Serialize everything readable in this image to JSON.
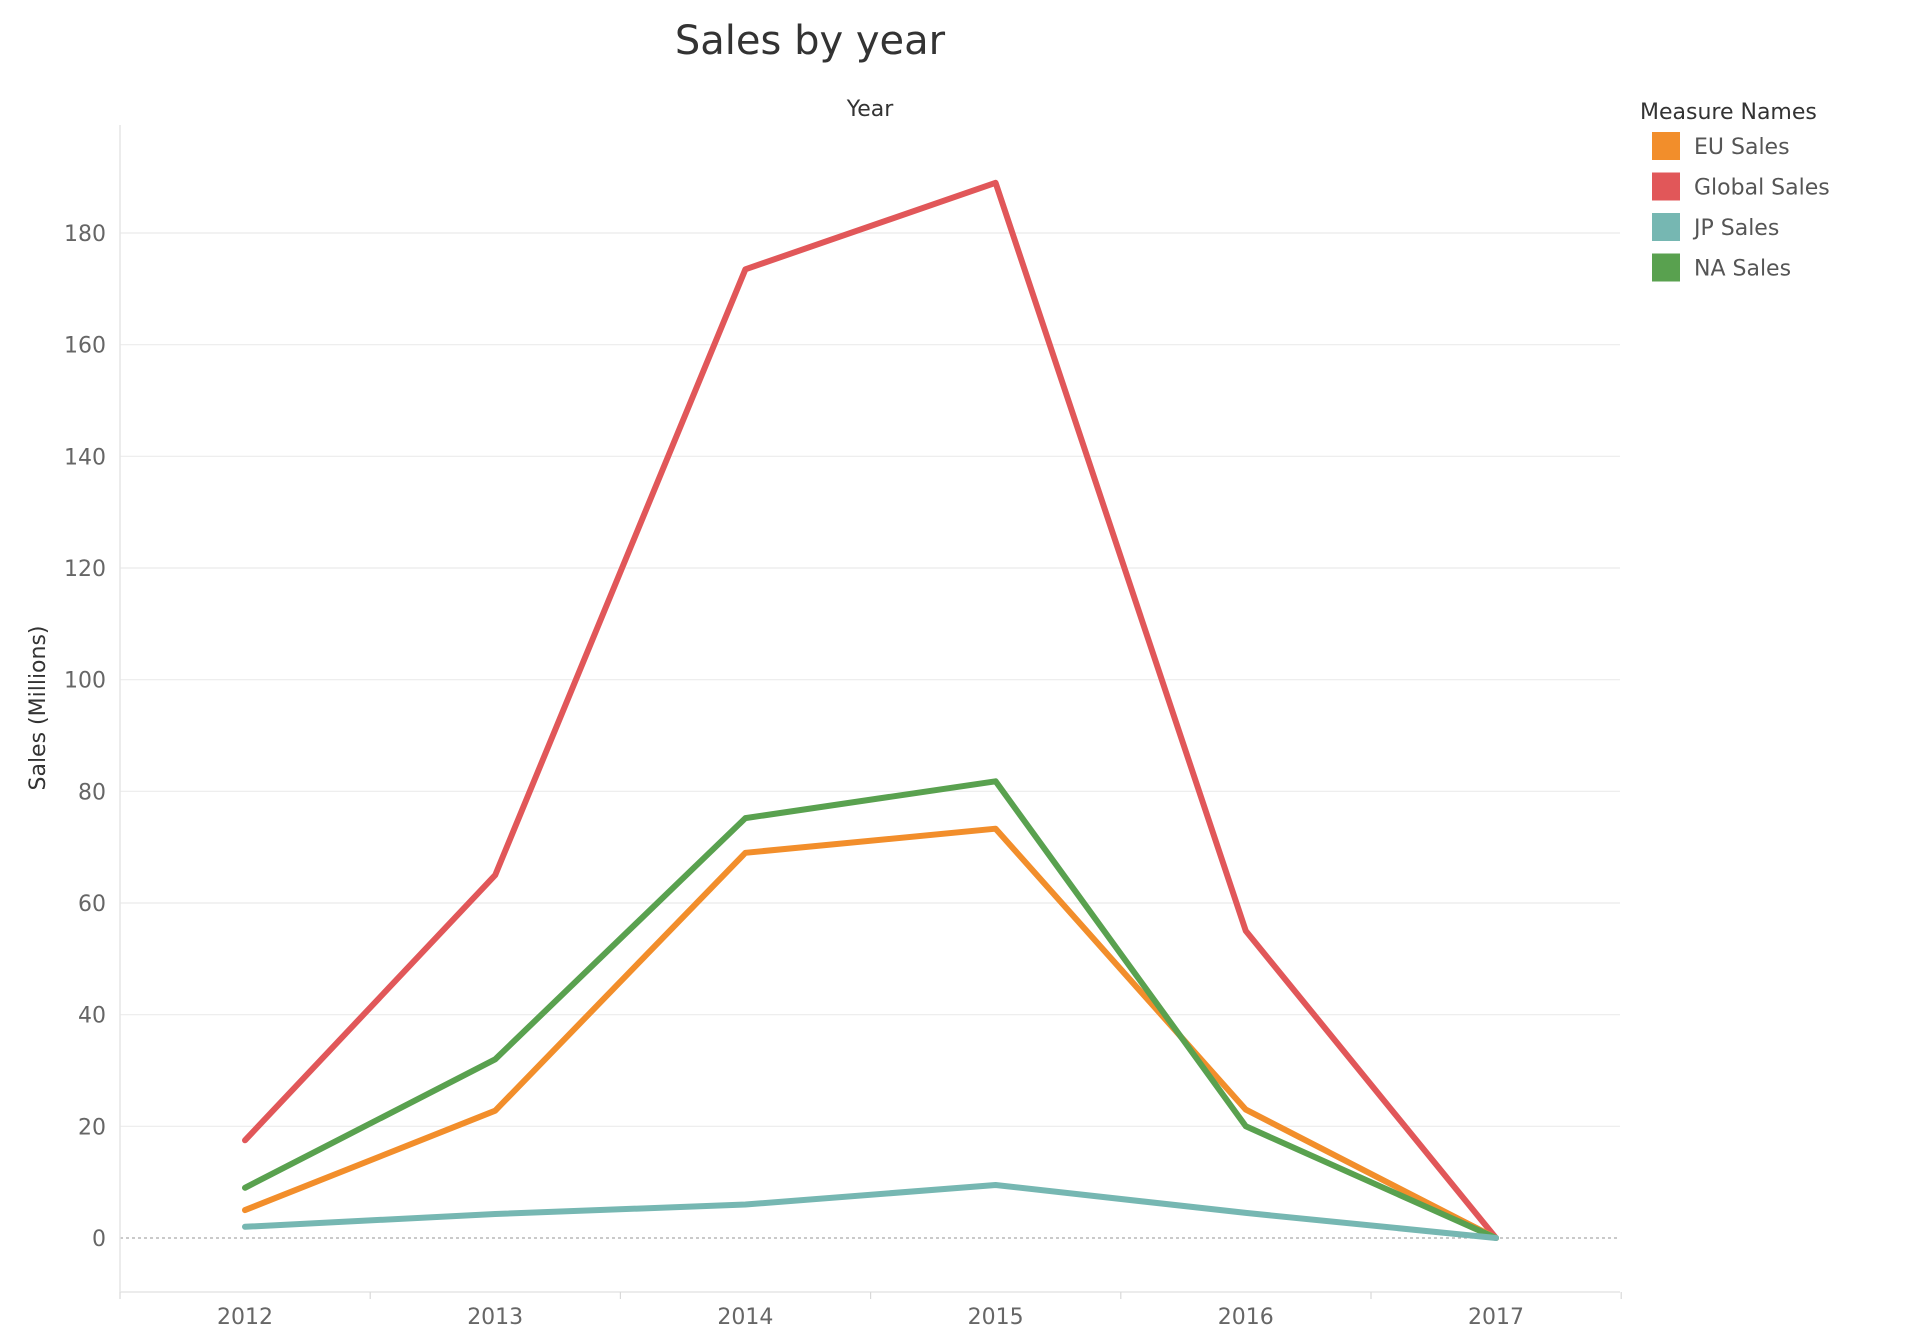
{
  "chart_data": {
    "type": "line",
    "title": "Sales by year",
    "xlabel": "Year",
    "ylabel": "Sales (Millions)",
    "x": [
      "2012",
      "2013",
      "2014",
      "2015",
      "2016",
      "2017"
    ],
    "yticks": [
      0,
      20,
      40,
      60,
      80,
      100,
      120,
      140,
      160,
      180
    ],
    "ylim": [
      -10,
      198
    ],
    "grid": true,
    "legend": {
      "title": "Measure Names",
      "placement": "top-right"
    },
    "series": [
      {
        "name": "EU Sales",
        "color": "#f28e2b",
        "values": [
          5,
          22.8,
          69,
          73.3,
          23,
          0
        ]
      },
      {
        "name": "Global Sales",
        "color": "#e15759",
        "values": [
          17.5,
          65,
          173.5,
          189,
          55,
          0
        ]
      },
      {
        "name": "JP Sales",
        "color": "#76b7b2",
        "values": [
          2,
          4.3,
          6,
          9.5,
          4.5,
          0
        ]
      },
      {
        "name": "NA Sales",
        "color": "#59a14f",
        "values": [
          9,
          32,
          75.2,
          81.8,
          20,
          0
        ]
      }
    ]
  }
}
